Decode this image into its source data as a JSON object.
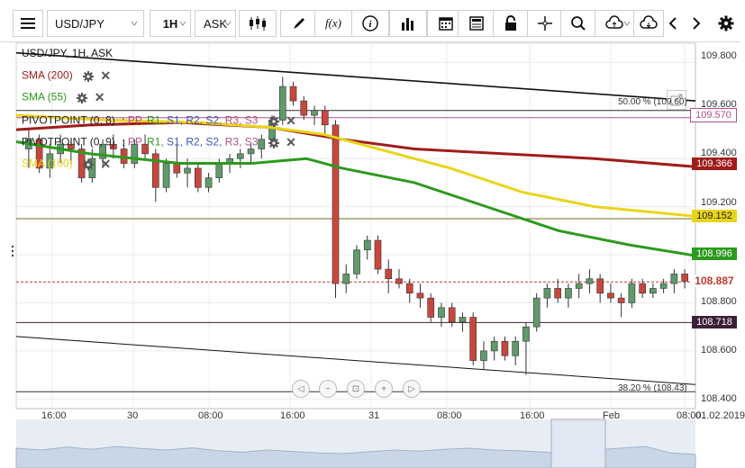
{
  "toolbar": {
    "symbol_value": "USD/JPY",
    "timeframe_label": "1H",
    "price_type_label": "ASK",
    "fx_label": "f(x)"
  },
  "legend": {
    "title": "USD/JPY, 1H, ASK",
    "sma200_label": "SMA (200)",
    "sma55_label": "SMA (55)",
    "pivot1_label": "PIVOTPOINT (0, 8)",
    "pivot2_label": "PIVOTPOINT (0, 9)",
    "pivot_items_prefix": ":",
    "pivot_items": [
      "PP,",
      "R1,",
      "S1,",
      "R2,",
      "S2,",
      "R3,",
      "S3"
    ],
    "sma100_label": "SMA (100)"
  },
  "price_axis": {
    "ticks": [
      "109.800",
      "109.600",
      "109.400",
      "109.200",
      "108.800",
      "108.600",
      "108.400"
    ],
    "tags": {
      "pivot_upper": "109.570",
      "sma200": "109.366",
      "sma100": "109.152",
      "sma55": "108.996",
      "current": "108.887",
      "pivot_lower": "108.718"
    }
  },
  "fib_labels": {
    "f50": "50.00 % (109.60)",
    "f38": "38.20 % (108.43)"
  },
  "time_axis": {
    "labels": [
      "16:00",
      "30",
      "08:00",
      "16:00",
      "31",
      "08:00",
      "16:00",
      "Feb",
      "08:00",
      "01.02.2019"
    ]
  },
  "colors": {
    "up": "#5f9a6a",
    "down": "#c8473c",
    "sma200": "#a01c1c",
    "sma100": "#e8d51a",
    "sma55": "#2c9a1e",
    "pivot_upper": "#b0508a",
    "pivot_lower": "#3d1f3a",
    "current": "#c0392b"
  },
  "icons": {
    "menu": "hamburger-icon",
    "candles": "candlestick-icon",
    "draw": "pencil-icon",
    "info": "info-icon",
    "volume": "bar-chart-icon",
    "calendar": "calendar-icon",
    "news": "newspaper-icon",
    "lock": "lock-icon",
    "crosshair": "crosshair-icon",
    "zoom": "zoom-icon",
    "upload": "cloud-upload-icon",
    "download": "cloud-download-icon",
    "settings": "gear-icon"
  },
  "chart_data": {
    "type": "candlestick",
    "instrument": "USD/JPY",
    "timeframe": "1H",
    "ylim": [
      108.36,
      109.88
    ],
    "candles": [
      [
        109.44,
        109.52,
        109.36,
        109.48
      ],
      [
        109.48,
        109.5,
        109.34,
        109.36
      ],
      [
        109.36,
        109.46,
        109.32,
        109.42
      ],
      [
        109.42,
        109.5,
        109.38,
        109.46
      ],
      [
        109.46,
        109.48,
        109.38,
        109.44
      ],
      [
        109.44,
        109.46,
        109.3,
        109.32
      ],
      [
        109.32,
        109.44,
        109.3,
        109.4
      ],
      [
        109.4,
        109.48,
        109.36,
        109.46
      ],
      [
        109.46,
        109.5,
        109.4,
        109.44
      ],
      [
        109.44,
        109.48,
        109.36,
        109.38
      ],
      [
        109.38,
        109.48,
        109.36,
        109.46
      ],
      [
        109.46,
        109.5,
        109.4,
        109.42
      ],
      [
        109.42,
        109.44,
        109.22,
        109.28
      ],
      [
        109.28,
        109.4,
        109.26,
        109.38
      ],
      [
        109.38,
        109.46,
        109.32,
        109.34
      ],
      [
        109.34,
        109.4,
        109.28,
        109.36
      ],
      [
        109.36,
        109.38,
        109.26,
        109.28
      ],
      [
        109.28,
        109.34,
        109.26,
        109.32
      ],
      [
        109.32,
        109.4,
        109.3,
        109.38
      ],
      [
        109.38,
        109.42,
        109.34,
        109.4
      ],
      [
        109.4,
        109.44,
        109.36,
        109.42
      ],
      [
        109.42,
        109.46,
        109.38,
        109.44
      ],
      [
        109.44,
        109.5,
        109.4,
        109.48
      ],
      [
        109.48,
        109.58,
        109.46,
        109.56
      ],
      [
        109.56,
        109.74,
        109.54,
        109.7
      ],
      [
        109.7,
        109.72,
        109.62,
        109.64
      ],
      [
        109.64,
        109.66,
        109.56,
        109.58
      ],
      [
        109.58,
        109.62,
        109.54,
        109.6
      ],
      [
        109.6,
        109.62,
        109.5,
        109.54
      ],
      [
        109.54,
        109.56,
        108.82,
        108.88
      ],
      [
        108.88,
        108.96,
        108.84,
        108.92
      ],
      [
        108.92,
        109.04,
        108.9,
        109.02
      ],
      [
        109.02,
        109.08,
        108.98,
        109.06
      ],
      [
        109.06,
        109.08,
        108.92,
        108.94
      ],
      [
        108.94,
        108.98,
        108.84,
        108.9
      ],
      [
        108.9,
        108.94,
        108.86,
        108.88
      ],
      [
        108.88,
        108.9,
        108.8,
        108.84
      ],
      [
        108.84,
        108.88,
        108.78,
        108.82
      ],
      [
        108.82,
        108.84,
        108.72,
        108.74
      ],
      [
        108.74,
        108.8,
        108.7,
        108.78
      ],
      [
        108.78,
        108.8,
        108.7,
        108.72
      ],
      [
        108.72,
        108.76,
        108.68,
        108.74
      ],
      [
        108.74,
        108.76,
        108.54,
        108.56
      ],
      [
        108.56,
        108.64,
        108.52,
        108.6
      ],
      [
        108.6,
        108.66,
        108.56,
        108.64
      ],
      [
        108.64,
        108.66,
        108.56,
        108.58
      ],
      [
        108.58,
        108.66,
        108.54,
        108.64
      ],
      [
        108.64,
        108.72,
        108.5,
        108.7
      ],
      [
        108.7,
        108.84,
        108.68,
        108.82
      ],
      [
        108.82,
        108.88,
        108.78,
        108.86
      ],
      [
        108.86,
        108.9,
        108.8,
        108.82
      ],
      [
        108.82,
        108.88,
        108.78,
        108.86
      ],
      [
        108.86,
        108.92,
        108.82,
        108.88
      ],
      [
        108.88,
        108.94,
        108.84,
        108.9
      ],
      [
        108.9,
        108.92,
        108.8,
        108.84
      ],
      [
        108.84,
        108.88,
        108.8,
        108.82
      ],
      [
        108.82,
        108.84,
        108.74,
        108.8
      ],
      [
        108.8,
        108.9,
        108.78,
        108.88
      ],
      [
        108.88,
        108.9,
        108.82,
        108.84
      ],
      [
        108.84,
        108.88,
        108.82,
        108.86
      ],
      [
        108.86,
        108.9,
        108.84,
        108.88
      ],
      [
        108.88,
        108.94,
        108.84,
        108.92
      ],
      [
        108.92,
        108.94,
        108.86,
        108.89
      ]
    ]
  }
}
